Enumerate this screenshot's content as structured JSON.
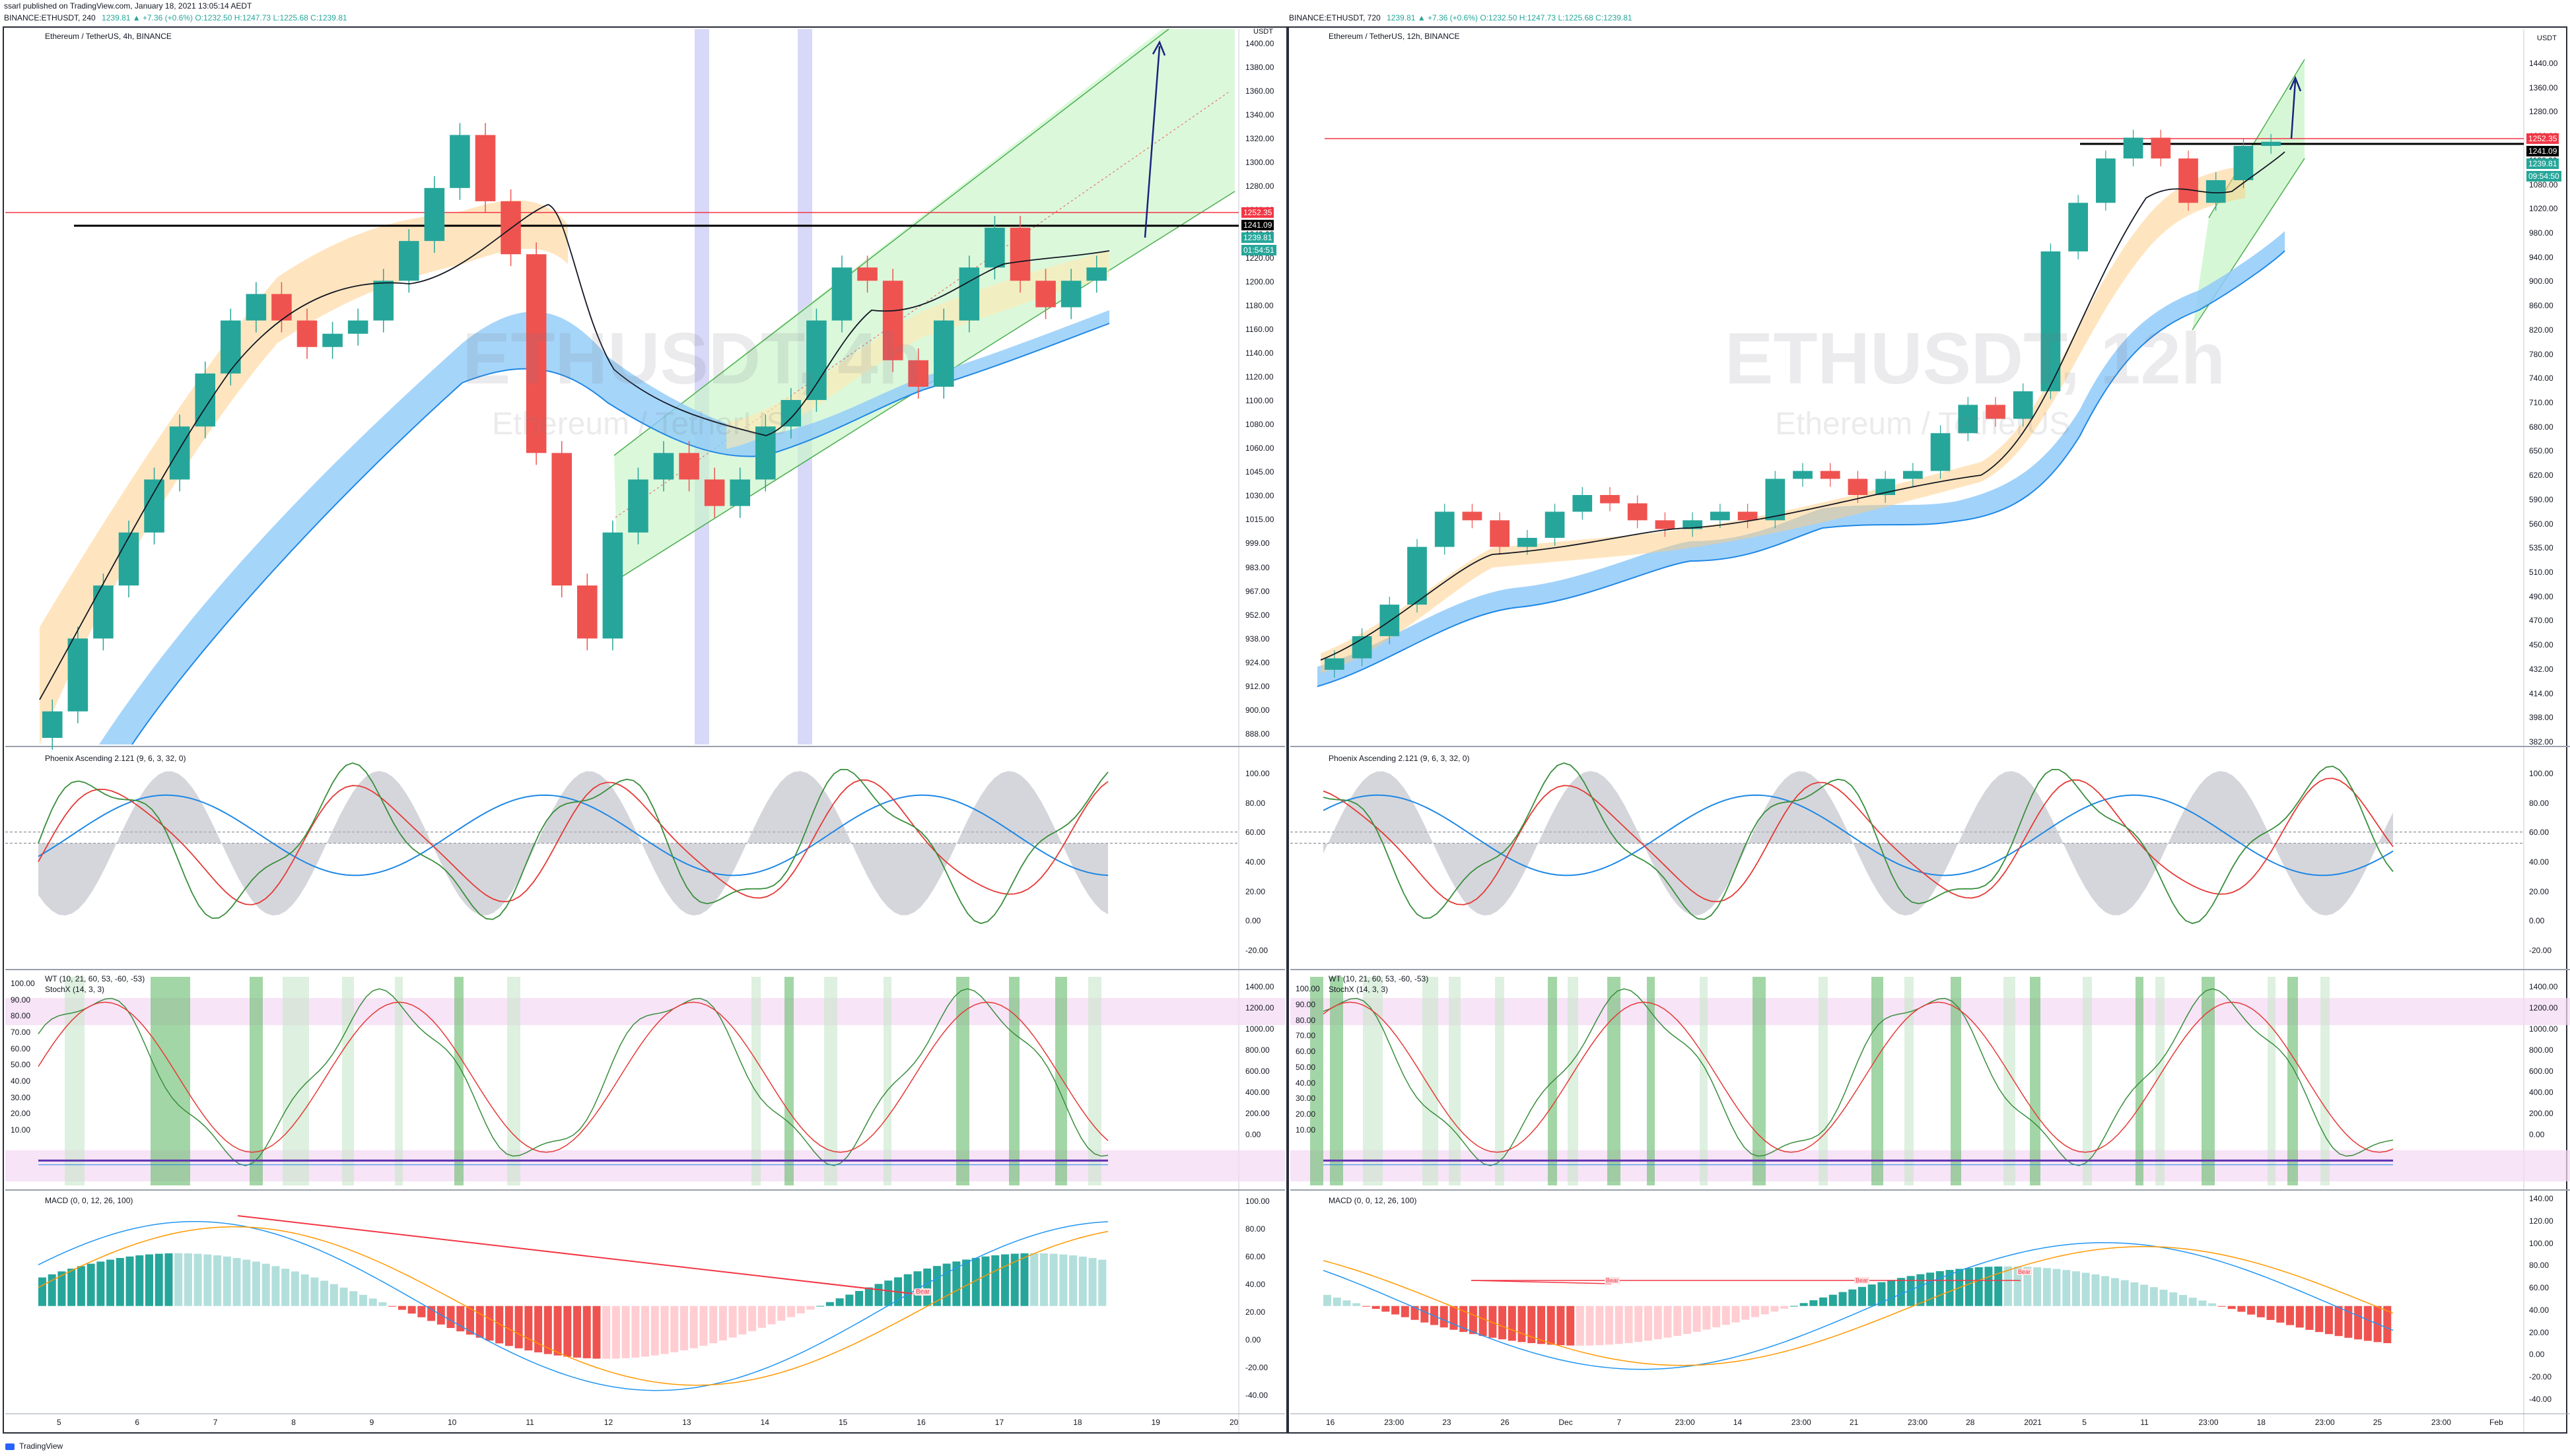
{
  "header": {
    "published": "ssarl published on TradingView.com, January 18, 2021 13:05:14 AEDT",
    "left_symbol": "BINANCE:ETHUSDT, 240",
    "left_quote": "1239.81 ▲ +7.36 (+0.6%) O:1232.50 H:1247.73 L:1225.68 C:1239.81",
    "right_symbol": "BINANCE:ETHUSDT, 720",
    "right_quote": "1239.81 ▲ +7.36 (+0.6%) O:1232.50 H:1247.73 L:1225.68 C:1239.81"
  },
  "footer": {
    "brand": "TradingView"
  },
  "left": {
    "title": "Ethereum / TetherUS, 4h, BINANCE",
    "watermark": "ETHUSDT, 4h",
    "watermark_sub": "Ethereum / TetherUS",
    "axis_unit": "USDT",
    "price_ticks": [
      "1400.00",
      "1380.00",
      "1360.00",
      "1340.00",
      "1320.00",
      "1300.00",
      "1280.00",
      "1260.00",
      "1240.00",
      "1220.00",
      "1200.00",
      "1180.00",
      "1160.00",
      "1140.00",
      "1120.00",
      "1100.00",
      "1080.00",
      "1060.00",
      "1045.00",
      "1030.00",
      "1015.00",
      "999.00",
      "983.00",
      "967.00",
      "952.00",
      "938.00",
      "924.00",
      "912.00",
      "900.00",
      "888.00"
    ],
    "badges": [
      {
        "text": "1252.35",
        "color": "#f23645"
      },
      {
        "text": "1241.09",
        "color": "#000000"
      },
      {
        "text": "1239.81",
        "color": "#26a69a"
      },
      {
        "text": "01:54:51",
        "color": "#26a69a"
      }
    ],
    "osc_title": "Phoenix Ascending 2.121 (9, 6, 3, 32, 0)",
    "osc_ticks": [
      "100.00",
      "80.00",
      "60.00",
      "40.00",
      "20.00",
      "0.00",
      "-20.00"
    ],
    "wt_title": "WT (10, 21, 60, 53, -60, -53)",
    "stoch_title": "StochX (14, 3, 3)",
    "wt_ticks_left": [
      "100.00",
      "90.00",
      "80.00",
      "70.00",
      "60.00",
      "50.00",
      "40.00",
      "30.00",
      "20.00",
      "10.00"
    ],
    "wt_ticks_right": [
      "1400.00",
      "1200.00",
      "1000.00",
      "800.00",
      "600.00",
      "400.00",
      "200.00",
      "0.00"
    ],
    "macd_title": "MACD (0, 0, 12, 26, 100)",
    "macd_ticks": [
      "100.00",
      "80.00",
      "60.00",
      "40.00",
      "20.00",
      "0.00",
      "-20.00",
      "-40.00"
    ],
    "macd_marker": "Bear",
    "time_ticks": [
      "5",
      "6",
      "7",
      "8",
      "9",
      "10",
      "11",
      "12",
      "13",
      "14",
      "15",
      "16",
      "17",
      "18",
      "19",
      "20"
    ]
  },
  "right": {
    "title": "Ethereum / TetherUS, 12h, BINANCE",
    "watermark": "ETHUSDT, 12h",
    "watermark_sub": "Ethereum / TetherUS",
    "axis_unit": "USDT",
    "price_ticks": [
      "1440.00",
      "1360.00",
      "1280.00",
      "1200.00",
      "1130.00",
      "1080.00",
      "1020.00",
      "980.00",
      "940.00",
      "900.00",
      "860.00",
      "820.00",
      "780.00",
      "740.00",
      "710.00",
      "680.00",
      "650.00",
      "620.00",
      "590.00",
      "560.00",
      "535.00",
      "510.00",
      "490.00",
      "470.00",
      "450.00",
      "432.00",
      "414.00",
      "398.00",
      "382.00"
    ],
    "badges": [
      {
        "text": "1252.35",
        "color": "#f23645"
      },
      {
        "text": "1241.09",
        "color": "#000000"
      },
      {
        "text": "1239.81",
        "color": "#26a69a"
      },
      {
        "text": "09:54:50",
        "color": "#26a69a"
      }
    ],
    "osc_title": "Phoenix Ascending 2.121 (9, 6, 3, 32, 0)",
    "osc_ticks": [
      "100.00",
      "80.00",
      "60.00",
      "40.00",
      "20.00",
      "0.00",
      "-20.00"
    ],
    "wt_title": "WT (10, 21, 60, 53, -60, -53)",
    "stoch_title": "StochX (14, 3, 3)",
    "wt_ticks_left": [
      "100.00",
      "90.00",
      "80.00",
      "70.00",
      "60.00",
      "50.00",
      "40.00",
      "30.00",
      "20.00",
      "10.00"
    ],
    "wt_ticks_right": [
      "1400.00",
      "1200.00",
      "1000.00",
      "800.00",
      "600.00",
      "400.00",
      "200.00",
      "0.00"
    ],
    "macd_title": "MACD (0, 0, 12, 26, 100)",
    "macd_ticks": [
      "140.00",
      "120.00",
      "100.00",
      "80.00",
      "60.00",
      "40.00",
      "20.00",
      "0.00",
      "-20.00",
      "-40.00"
    ],
    "macd_markers": [
      "Bear",
      "Bear",
      "Bear"
    ],
    "time_ticks": [
      "16",
      "23:00",
      "23",
      "26",
      "Dec",
      "7",
      "23:00",
      "14",
      "23:00",
      "21",
      "23:00",
      "28",
      "2021",
      "5",
      "11",
      "23:00",
      "18",
      "23:00",
      "25",
      "23:00",
      "Feb"
    ]
  },
  "chart_data": [
    {
      "type": "candlestick",
      "title": "Ethereum / TetherUS, 4h, BINANCE",
      "ylabel": "USDT",
      "x_labels": [
        "5",
        "6",
        "7",
        "8",
        "9",
        "10",
        "11",
        "12",
        "13",
        "14",
        "15",
        "16",
        "17",
        "18",
        "19",
        "20"
      ],
      "close_approx": [
        905,
        960,
        1000,
        1040,
        1080,
        1120,
        1160,
        1200,
        1220,
        1200,
        1180,
        1190,
        1200,
        1230,
        1260,
        1300,
        1340,
        1290,
        1250,
        1100,
        1000,
        960,
        1040,
        1080,
        1100,
        1080,
        1060,
        1080,
        1120,
        1140,
        1200,
        1240,
        1230,
        1170,
        1150,
        1200,
        1240,
        1270,
        1230,
        1210,
        1230,
        1240
      ],
      "horizontal_levels": [
        {
          "value": 1252.35,
          "color": "#f23645"
        },
        {
          "value": 1241.09,
          "color": "#000000"
        }
      ],
      "last_price": 1239.81,
      "colors": {
        "up": "#26a69a",
        "down": "#ef5350",
        "channel": "#4caf50",
        "ema_band": "#90caf9",
        "ema_band_warm": "#ffcc80"
      }
    },
    {
      "type": "candlestick",
      "title": "Ethereum / TetherUS, 12h, BINANCE",
      "ylabel": "USDT",
      "x_labels": [
        "16",
        "23:00",
        "23",
        "26",
        "Dec",
        "7",
        "23:00",
        "14",
        "23:00",
        "21",
        "23:00",
        "28",
        "2021",
        "5",
        "11",
        "23:00",
        "18",
        "23:00",
        "25",
        "23:00",
        "Feb"
      ],
      "close_approx": [
        450,
        470,
        500,
        560,
        600,
        590,
        560,
        570,
        600,
        620,
        610,
        590,
        580,
        590,
        600,
        590,
        640,
        650,
        640,
        620,
        640,
        650,
        700,
        740,
        720,
        760,
        1000,
        1100,
        1200,
        1250,
        1200,
        1100,
        1150,
        1230,
        1240
      ],
      "horizontal_levels": [
        {
          "value": 1252.35,
          "color": "#f23645"
        },
        {
          "value": 1241.09,
          "color": "#000000"
        }
      ],
      "last_price": 1239.81
    }
  ]
}
